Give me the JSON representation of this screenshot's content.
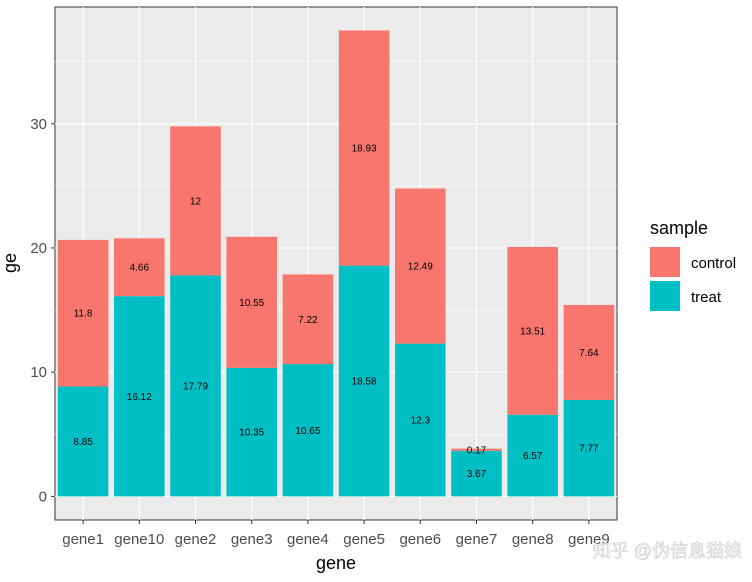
{
  "chart_data": {
    "type": "bar",
    "stacked": true,
    "categories": [
      "gene1",
      "gene10",
      "gene2",
      "gene3",
      "gene4",
      "gene5",
      "gene6",
      "gene7",
      "gene8",
      "gene9"
    ],
    "series": [
      {
        "name": "treat",
        "color": "#00BFC4",
        "values": [
          8.85,
          16.12,
          17.79,
          10.35,
          10.65,
          18.58,
          12.3,
          3.67,
          6.57,
          7.77
        ],
        "labels": [
          "8.85",
          "16.12",
          "17.79",
          "10.35",
          "10.65",
          "18.58",
          "12.3",
          "3.67",
          "6.57",
          "7.77"
        ]
      },
      {
        "name": "control",
        "color": "#F8766D",
        "values": [
          11.8,
          4.66,
          12,
          10.55,
          7.22,
          18.93,
          12.49,
          0.17,
          13.51,
          7.64
        ],
        "labels": [
          "11.8",
          "4.66",
          "12",
          "10.55",
          "7.22",
          "18.93",
          "12.49",
          "0.17",
          "13.51",
          "7.64"
        ]
      }
    ],
    "xlabel": "gene",
    "ylabel": "ge",
    "ylim": [
      -1.9,
      39.4
    ],
    "yticks": [
      0,
      10,
      20,
      30
    ],
    "ytick_labels": [
      "0",
      "10",
      "20",
      "30"
    ],
    "grid": true,
    "legend": {
      "title": "sample",
      "position": "right",
      "entries": [
        "control",
        "treat"
      ]
    },
    "colors": {
      "panel": "#EBEBEB",
      "grid": "#FFFFFF",
      "control": "#F8766D",
      "treat": "#00BFC4"
    }
  },
  "watermark": "知乎 @伪信息猫娘"
}
